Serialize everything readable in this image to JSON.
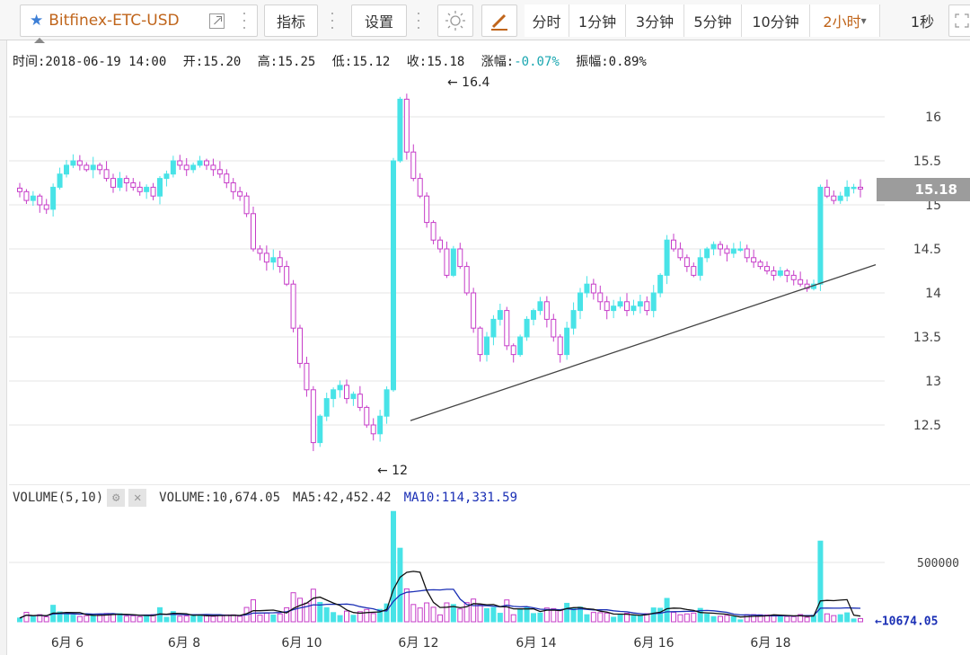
{
  "toolbar": {
    "symbol": "Bitfinex-ETC-USD",
    "indicators_label": "指标",
    "settings_label": "设置",
    "periods": [
      "分时",
      "1分钟",
      "3分钟",
      "5分钟",
      "10分钟",
      "2小时",
      "1秒"
    ],
    "active_period": "2小时",
    "active_color": "#c0651b"
  },
  "info": {
    "time": "时间:2018-06-19 14:00",
    "open": "开:15.20",
    "high": "高:15.25",
    "low": "低:15.12",
    "close": "收:15.18",
    "change_label": "涨幅:",
    "change_value": "-0.07%",
    "amplitude": "振幅:0.89%"
  },
  "price_axis": {
    "ticks": [
      "16",
      "15.5",
      "15",
      "14.5",
      "14",
      "13.5",
      "13",
      "12.5"
    ],
    "current_price": "15.18"
  },
  "annotations": {
    "high_label": "← 16.4",
    "low_label": "← 12"
  },
  "volume": {
    "title": "VOLUME(5,10)",
    "value_text": "VOLUME:10,674.05",
    "ma5_text": "MA5:42,452.42",
    "ma10_text": "MA10:114,331.59",
    "axis_tick": "500000",
    "current_label": "←10674.05"
  },
  "x_axis": {
    "labels": [
      "6月 6",
      "6月 8",
      "6月 10",
      "6月 12",
      "6月 14",
      "6月 16",
      "6月 18"
    ]
  },
  "colors": {
    "up": "#48e3e7",
    "down": "#c63cc8",
    "ma5": "#111111",
    "ma10": "#1a2fb5",
    "trendline": "#444444"
  },
  "chart_data": {
    "type": "candlestick",
    "title": "",
    "x_labels": [
      "6月 6",
      "6月 8",
      "6月 10",
      "6月 12",
      "6月 14",
      "6月 16",
      "6月 18"
    ],
    "y_range": [
      12.0,
      16.5
    ],
    "y_ticks": [
      12.5,
      13,
      13.5,
      14,
      14.5,
      15,
      15.5,
      16
    ],
    "grid": true,
    "annotated_high": 16.4,
    "annotated_low": 12,
    "trendline": [
      [
        12.55
      ],
      [
        14.32
      ]
    ],
    "close_path": [
      15.15,
      15.05,
      15.1,
      15.0,
      14.95,
      15.2,
      15.35,
      15.45,
      15.5,
      15.45,
      15.4,
      15.45,
      15.4,
      15.3,
      15.2,
      15.3,
      15.25,
      15.2,
      15.15,
      15.2,
      15.1,
      15.3,
      15.35,
      15.5,
      15.45,
      15.4,
      15.45,
      15.5,
      15.45,
      15.4,
      15.35,
      15.25,
      15.15,
      15.1,
      14.9,
      14.5,
      14.45,
      14.35,
      14.4,
      14.3,
      14.1,
      13.6,
      13.2,
      12.9,
      12.3,
      12.6,
      12.8,
      12.9,
      12.95,
      12.8,
      12.85,
      12.7,
      12.5,
      12.4,
      12.6,
      12.9,
      15.5,
      16.2,
      15.6,
      15.3,
      15.1,
      14.8,
      14.6,
      14.5,
      14.2,
      14.5,
      14.3,
      14.0,
      13.6,
      13.3,
      13.5,
      13.7,
      13.8,
      13.4,
      13.3,
      13.5,
      13.7,
      13.8,
      13.9,
      13.7,
      13.5,
      13.3,
      13.6,
      13.8,
      14.0,
      14.1,
      14.0,
      13.9,
      13.8,
      13.85,
      13.9,
      13.8,
      13.85,
      13.9,
      13.8,
      14.0,
      14.2,
      14.6,
      14.5,
      14.4,
      14.3,
      14.2,
      14.4,
      14.5,
      14.55,
      14.5,
      14.45,
      14.5,
      14.5,
      14.4,
      14.35,
      14.3,
      14.25,
      14.2,
      14.25,
      14.2,
      14.15,
      14.1,
      14.05,
      14.1,
      15.2,
      15.1,
      15.05,
      15.1,
      15.2,
      15.2,
      15.18
    ],
    "volume_ma": {
      "ma5": 42452.42,
      "ma10": 114331.59
    },
    "volume_last": 10674.05,
    "volume_ticks": [
      500000
    ]
  }
}
